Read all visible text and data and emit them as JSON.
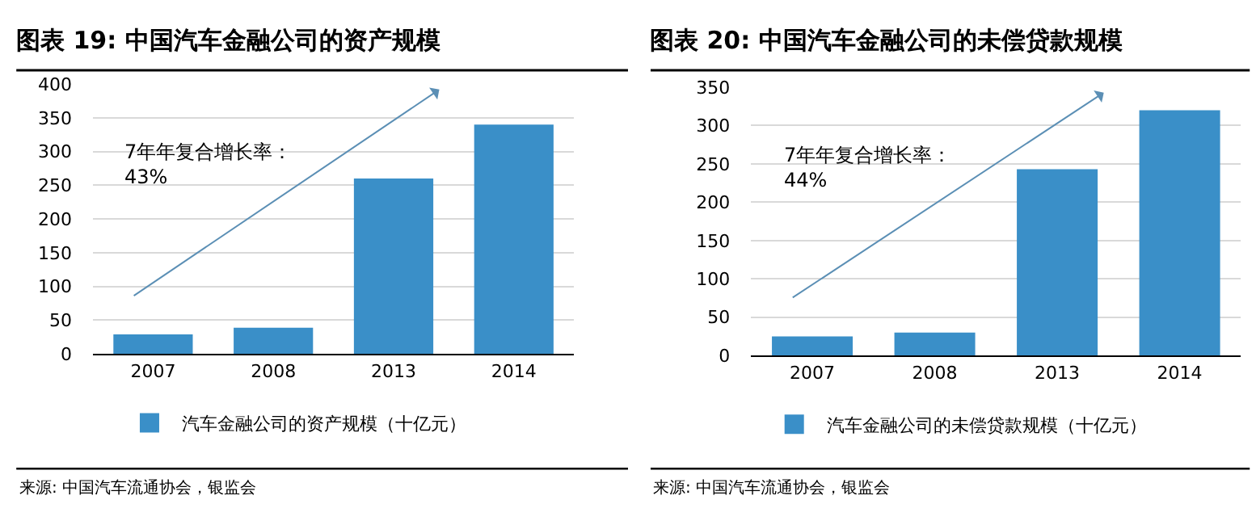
{
  "chart_data": [
    {
      "type": "bar",
      "title": "图表 19: 中国汽车金融公司的资产规模",
      "categories": [
        "2007",
        "2008",
        "2013",
        "2014"
      ],
      "series": [
        {
          "name": "汽车金融公司的资产规模（十亿元）",
          "color": "#3a8fc8",
          "values": [
            29,
            39,
            260,
            340
          ]
        }
      ],
      "ylim": [
        0,
        400
      ],
      "yticks": [
        0,
        50,
        100,
        150,
        200,
        250,
        300,
        350,
        400
      ],
      "grid": "y",
      "legend": "bottom",
      "annotations": [
        "7年年复合增长率：\n43%",
        "来源: 中国汽车流通协会，银监会"
      ]
    },
    {
      "type": "bar",
      "title": "图表 20: 中国汽车金融公司的未偿贷款规模",
      "categories": [
        "2007",
        "2008",
        "2013",
        "2014"
      ],
      "series": [
        {
          "name": "汽车金融公司的未偿贷款规模（十亿元）",
          "color": "#3a8fc8",
          "values": [
            25,
            30,
            243,
            320
          ]
        }
      ],
      "ylim": [
        0,
        350
      ],
      "yticks": [
        0,
        50,
        100,
        150,
        200,
        250,
        300,
        350
      ],
      "grid": "y",
      "legend": "bottom",
      "annotations": [
        "7年年复合增长率：\n44%",
        "来源: 中国汽车流通协会，银监会"
      ]
    }
  ]
}
